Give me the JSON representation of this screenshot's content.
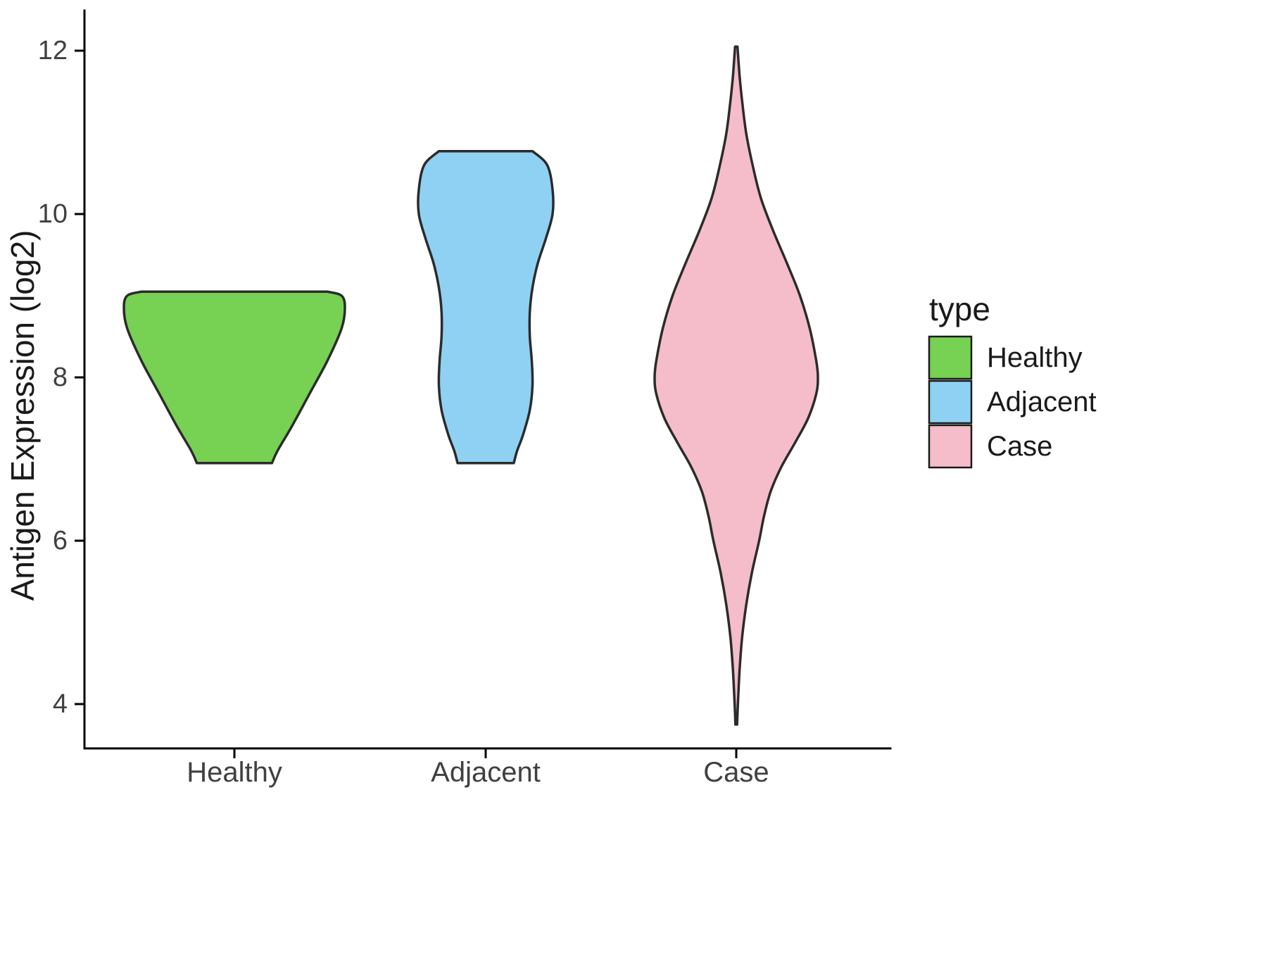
{
  "chart_data": {
    "type": "violin",
    "title": "",
    "xlabel": "",
    "ylabel": "Antigen Expression (log2)",
    "categories": [
      "Healthy",
      "Adjacent",
      "Case"
    ],
    "yticks": [
      12,
      10,
      8,
      6,
      4
    ],
    "ylim": [
      3.5,
      12.3
    ],
    "grid": "off",
    "legend": {
      "title": "type",
      "position": "right",
      "entries": [
        {
          "label": "Healthy",
          "color": "#77D153"
        },
        {
          "label": "Adjacent",
          "color": "#8FD1F2"
        },
        {
          "label": "Case",
          "color": "#F4BDC9"
        }
      ]
    },
    "series": [
      {
        "name": "Healthy",
        "color": "#77D153",
        "y_min": 6.95,
        "y_max": 9.05,
        "shape": "trimmed (flat top and bottom)",
        "profile": [
          [
            9.05,
            0.84
          ],
          [
            9.0,
            0.97
          ],
          [
            8.85,
            1.0
          ],
          [
            8.6,
            0.97
          ],
          [
            8.2,
            0.84
          ],
          [
            7.8,
            0.68
          ],
          [
            7.4,
            0.52
          ],
          [
            7.1,
            0.39
          ],
          [
            6.95,
            0.34
          ]
        ]
      },
      {
        "name": "Adjacent",
        "color": "#8FD1F2",
        "y_min": 6.95,
        "y_max": 10.77,
        "shape": "trimmed (flat top and bottom), bulge near 10, waist near 8.7",
        "profile": [
          [
            10.77,
            0.7
          ],
          [
            10.6,
            0.92
          ],
          [
            10.3,
            1.0
          ],
          [
            10.0,
            1.0
          ],
          [
            9.7,
            0.9
          ],
          [
            9.4,
            0.78
          ],
          [
            9.1,
            0.7
          ],
          [
            8.8,
            0.66
          ],
          [
            8.5,
            0.66
          ],
          [
            8.2,
            0.69
          ],
          [
            7.9,
            0.7
          ],
          [
            7.6,
            0.66
          ],
          [
            7.3,
            0.56
          ],
          [
            7.1,
            0.47
          ],
          [
            6.95,
            0.42
          ]
        ]
      },
      {
        "name": "Case",
        "color": "#F4BDC9",
        "y_min": 3.75,
        "y_max": 12.05,
        "shape": "untrimmed, long tails, widest near 8",
        "profile": [
          [
            12.05,
            0.015
          ],
          [
            11.7,
            0.04
          ],
          [
            11.4,
            0.07
          ],
          [
            11.0,
            0.12
          ],
          [
            10.6,
            0.2
          ],
          [
            10.2,
            0.3
          ],
          [
            9.8,
            0.45
          ],
          [
            9.4,
            0.62
          ],
          [
            9.0,
            0.78
          ],
          [
            8.6,
            0.9
          ],
          [
            8.2,
            0.98
          ],
          [
            8.0,
            1.0
          ],
          [
            7.8,
            0.98
          ],
          [
            7.5,
            0.88
          ],
          [
            7.2,
            0.72
          ],
          [
            6.9,
            0.55
          ],
          [
            6.6,
            0.42
          ],
          [
            6.3,
            0.34
          ],
          [
            6.0,
            0.28
          ],
          [
            5.6,
            0.19
          ],
          [
            5.2,
            0.12
          ],
          [
            4.8,
            0.07
          ],
          [
            4.4,
            0.04
          ],
          [
            4.0,
            0.02
          ],
          [
            3.75,
            0.01
          ]
        ]
      }
    ]
  }
}
